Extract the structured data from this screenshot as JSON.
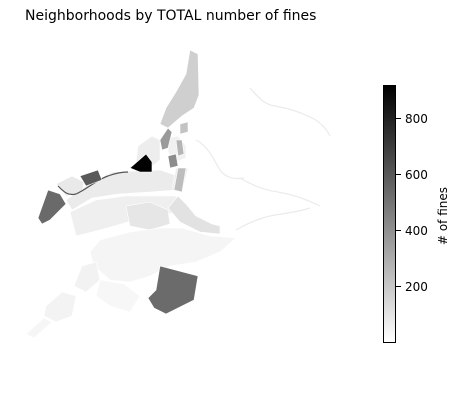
{
  "title": "Neighborhoods by TOTAL number of fines",
  "colorbar": {
    "label": "# of fines",
    "min": 0,
    "max": 920,
    "colormap": "Greys",
    "ticks": [
      {
        "value": 200,
        "label": "200"
      },
      {
        "value": 400,
        "label": "400"
      },
      {
        "value": 600,
        "label": "600"
      },
      {
        "value": 800,
        "label": "800"
      }
    ]
  },
  "chart_data": {
    "type": "choropleth",
    "title": "Neighborhoods by TOTAL number of fines",
    "value_label": "# of fines",
    "color_range": [
      0,
      920
    ],
    "regions": [
      {
        "id": "northern-strip",
        "value": 250
      },
      {
        "id": "central-darkest",
        "value": 920
      },
      {
        "id": "south-large",
        "value": 600
      },
      {
        "id": "west-mid",
        "value": 620
      },
      {
        "id": "west-small",
        "value": 480
      },
      {
        "id": "central-grey-a",
        "value": 430
      },
      {
        "id": "central-grey-b",
        "value": 380
      },
      {
        "id": "central-grey-c",
        "value": 300
      }
    ]
  }
}
